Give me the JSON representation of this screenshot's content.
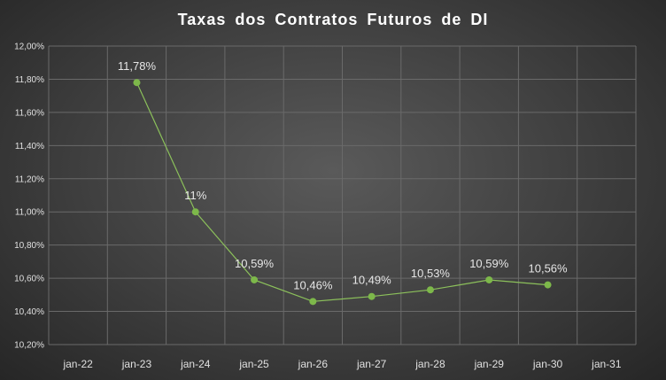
{
  "chart_data": {
    "type": "line",
    "title": "Taxas dos Contratos Futuros de DI",
    "xlabel": "",
    "ylabel": "",
    "x_ticks": [
      "jan-22",
      "jan-23",
      "jan-24",
      "jan-25",
      "jan-26",
      "jan-27",
      "jan-28",
      "jan-29",
      "jan-30",
      "jan-31"
    ],
    "y_ticks": [
      "10,20%",
      "10,40%",
      "10,60%",
      "10,80%",
      "11,00%",
      "11,20%",
      "11,40%",
      "11,60%",
      "11,80%",
      "12,00%"
    ],
    "ylim": [
      10.2,
      12.0
    ],
    "grid": true,
    "colors": {
      "line": "#8cc15b",
      "marker": "#7db84a",
      "grid": "#6a6a6a"
    },
    "series": [
      {
        "x": [
          "jan-23",
          "jan-24",
          "jan-25",
          "jan-26",
          "jan-27",
          "jan-28",
          "jan-29",
          "jan-30"
        ],
        "values": [
          11.78,
          11.0,
          10.59,
          10.46,
          10.49,
          10.53,
          10.59,
          10.56
        ],
        "labels": [
          "11,78%",
          "11%",
          "10,59%",
          "10,46%",
          "10,49%",
          "10,53%",
          "10,59%",
          "10,56%"
        ]
      }
    ]
  }
}
